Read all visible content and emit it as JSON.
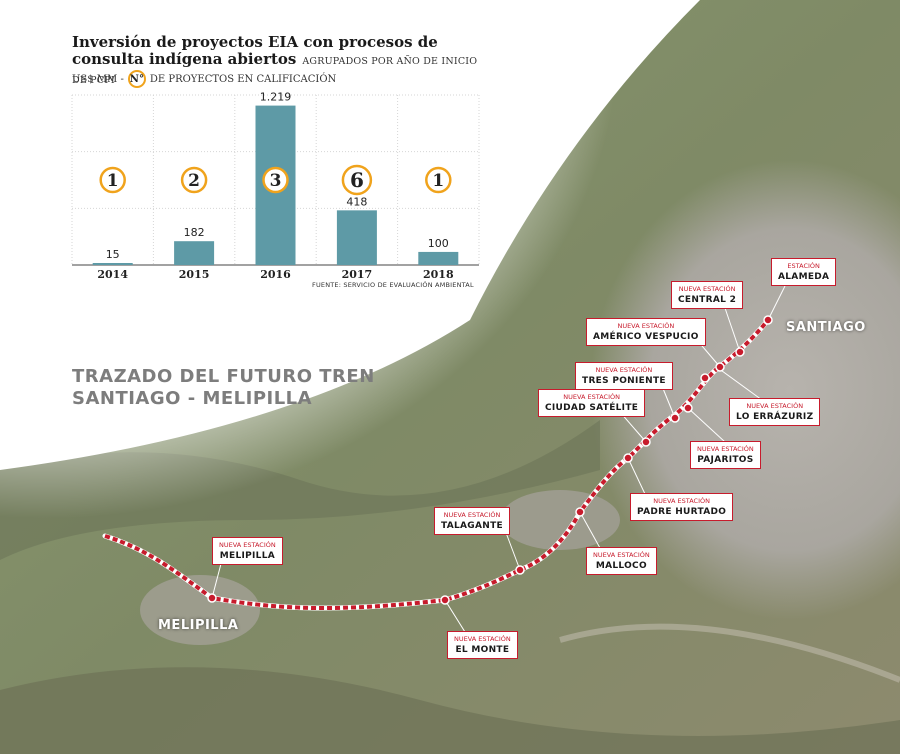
{
  "chart_data": {
    "type": "bar",
    "title": "Inversión de proyectos EIA con procesos de consulta indígena abiertos",
    "subtitle": "AGRUPADOS POR AÑO DE INICIO DE PCPI",
    "legend_unit": "US$ MM -",
    "legend_symbol": "N°",
    "legend_text": "DE PROYECTOS EN CALIFICACIÓN",
    "categories": [
      "2014",
      "2015",
      "2016",
      "2017",
      "2018"
    ],
    "values": [
      15,
      182,
      1219,
      418,
      100
    ],
    "value_labels": [
      "15",
      "182",
      "1.219",
      "418",
      "100"
    ],
    "project_counts": [
      "1",
      "2",
      "3",
      "6",
      "1"
    ],
    "ylim": [
      0,
      1300
    ],
    "source": "FUENTE: SERVICIO DE EVALUACIÓN AMBIENTAL",
    "colors": {
      "bar": "#5e9aa6",
      "count_circle": "#f0a31c",
      "grid": "#d6d6d6"
    }
  },
  "map": {
    "title_line1": "TRAZADO DEL FUTURO TREN",
    "title_line2": "SANTIAGO - MELIPILLA",
    "city_santiago": "SANTIAGO",
    "city_melipilla": "MELIPILLA",
    "route_color": "#c71b2c",
    "stations": [
      {
        "pre": "ESTACIÓN",
        "name": "ALAMEDA"
      },
      {
        "pre": "NUEVA ESTACIÓN",
        "name": "CENTRAL 2"
      },
      {
        "pre": "NUEVA ESTACIÓN",
        "name": "AMÉRICO VESPUCIO"
      },
      {
        "pre": "NUEVA ESTACIÓN",
        "name": "TRES PONIENTE"
      },
      {
        "pre": "NUEVA ESTACIÓN",
        "name": "CIUDAD SATÉLITE"
      },
      {
        "pre": "NUEVA ESTACIÓN",
        "name": "LO ERRÁZURIZ"
      },
      {
        "pre": "NUEVA ESTACIÓN",
        "name": "PAJARITOS"
      },
      {
        "pre": "NUEVA ESTACIÓN",
        "name": "PADRE HURTADO"
      },
      {
        "pre": "NUEVA ESTACIÓN",
        "name": "TALAGANTE"
      },
      {
        "pre": "NUEVA ESTACIÓN",
        "name": "MALLOCO"
      },
      {
        "pre": "NUEVA ESTACIÓN",
        "name": "MELIPILLA"
      },
      {
        "pre": "NUEVA ESTACIÓN",
        "name": "EL MONTE"
      }
    ]
  }
}
